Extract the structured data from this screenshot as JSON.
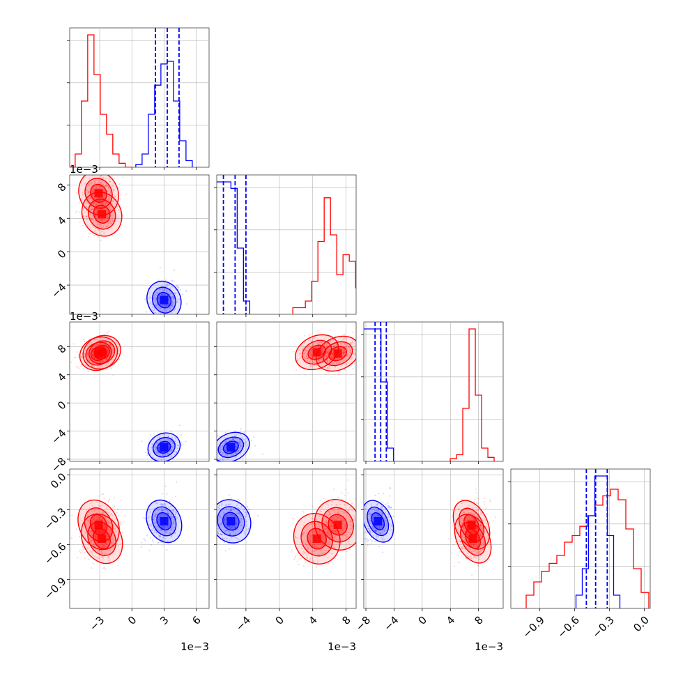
{
  "figure": {
    "type": "corner-plot",
    "colors": {
      "series_a": "#ff0000",
      "series_b": "#0000ff",
      "grid": "#b0b0b0"
    },
    "offset_label": "1e−3"
  },
  "chart_data": {
    "type": "scatter",
    "series": [
      {
        "color": "#ff0000",
        "modes": [
          {
            "p0": -0.0031,
            "p1": 0.007,
            "p2": 0.007,
            "p3": -0.43
          },
          {
            "p0": -0.0028,
            "p1": 0.0045,
            "p2": 0.0072,
            "p3": -0.55
          }
        ],
        "hist": {
          "p0": [
            0.0,
            0.1,
            0.5,
            1.0,
            0.7,
            0.4,
            0.25,
            0.1,
            0.03,
            0.0
          ],
          "p1": [
            0.05,
            0.05,
            0.1,
            0.25,
            0.55,
            0.88,
            0.6,
            0.3,
            0.45,
            0.4,
            0.2
          ],
          "p2": [
            0.02,
            0.05,
            0.4,
            1.0,
            0.5,
            0.1,
            0.03
          ],
          "p3": [
            0.1,
            0.2,
            0.28,
            0.34,
            0.4,
            0.5,
            0.55,
            0.62,
            0.7,
            0.78,
            0.85,
            0.9,
            0.82,
            0.6,
            0.3,
            0.12
          ]
        }
      },
      {
        "color": "#0000ff",
        "modes": [
          {
            "p0": 0.003,
            "p1": -0.0058,
            "p2": -0.0063,
            "p3": -0.4
          }
        ],
        "quantiles": {
          "p0": [
            0.0022,
            0.0033,
            0.0044
          ],
          "p1": [
            -0.0067,
            -0.0053,
            -0.004
          ],
          "p2": [
            -0.0067,
            -0.0059,
            -0.0051
          ],
          "p3": [
            -0.5,
            -0.42,
            -0.32
          ]
        },
        "hist": {
          "p0": [
            0.02,
            0.1,
            0.4,
            0.62,
            0.78,
            0.8,
            0.5,
            0.2,
            0.05
          ],
          "p1": [
            1.0,
            1.0,
            1.0,
            0.95,
            0.5,
            0.1
          ],
          "p2": [
            1.0,
            1.0,
            1.0,
            0.6,
            0.1
          ],
          "p3": [
            0.1,
            0.3,
            0.7,
            1.0,
            1.0,
            0.55,
            0.1
          ]
        }
      }
    ],
    "axes": [
      {
        "name": "p0",
        "range": [
          -0.0058,
          0.0072
        ],
        "ticks": [
          -0.003,
          0.0,
          0.003,
          0.006
        ],
        "ticklabels": [
          "−3",
          "0",
          "3",
          "6"
        ]
      },
      {
        "name": "p1",
        "range": [
          -0.0075,
          0.0092
        ],
        "ticks": [
          -0.004,
          0.0,
          0.004,
          0.008
        ],
        "ticklabels": [
          "−4",
          "0",
          "4",
          "8"
        ]
      },
      {
        "name": "p2",
        "range": [
          -0.0083,
          0.0115
        ],
        "ticks": [
          -0.008,
          -0.004,
          0.0,
          0.004,
          0.008
        ],
        "ticklabels": [
          "−8",
          "−4",
          "0",
          "4",
          "8"
        ]
      },
      {
        "name": "p3",
        "range": [
          -1.15,
          0.05
        ],
        "ticks": [
          -0.9,
          -0.6,
          -0.3,
          0.0
        ],
        "ticklabels": [
          "−0.9",
          "−0.6",
          "−0.3",
          "0.0"
        ]
      }
    ],
    "ytick_labels": {
      "row1": [
        "−4",
        "0",
        "4",
        "8"
      ],
      "row2": [
        "−8",
        "−4",
        "0",
        "4",
        "8"
      ],
      "row3": [
        "−0.9",
        "−0.6",
        "−0.3",
        "0.0"
      ]
    },
    "grid": true,
    "title": "",
    "xlabel": "",
    "ylabel": ""
  }
}
